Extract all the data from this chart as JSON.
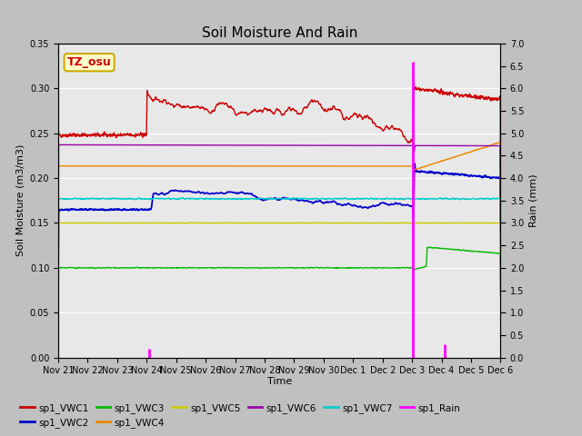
{
  "title": "Soil Moisture And Rain",
  "xlabel": "Time",
  "ylabel_left": "Soil Moisture (m3/m3)",
  "ylabel_right": "Rain (mm)",
  "site_label": "TZ_osu",
  "ylim_left": [
    0.0,
    0.35
  ],
  "ylim_right": [
    0.0,
    7.0
  ],
  "yticks_left": [
    0.0,
    0.05,
    0.1,
    0.15,
    0.2,
    0.25,
    0.3,
    0.35
  ],
  "yticks_right": [
    0.0,
    0.5,
    1.0,
    1.5,
    2.0,
    2.5,
    3.0,
    3.5,
    4.0,
    4.5,
    5.0,
    5.5,
    6.0,
    6.5,
    7.0
  ],
  "background_color": "#e8e8e8",
  "figure_bg": "#c8c8c8",
  "series": {
    "VWC1": {
      "color": "#cc0000",
      "label": "sp1_VWC1"
    },
    "VWC2": {
      "color": "#0000cc",
      "label": "sp1_VWC2"
    },
    "VWC3": {
      "color": "#00bb00",
      "label": "sp1_VWC3"
    },
    "VWC4": {
      "color": "#ee8800",
      "label": "sp1_VWC4"
    },
    "VWC5": {
      "color": "#cccc00",
      "label": "sp1_VWC5"
    },
    "VWC6": {
      "color": "#9900aa",
      "label": "sp1_VWC6"
    },
    "VWC7": {
      "color": "#00cccc",
      "label": "sp1_VWC7"
    },
    "Rain": {
      "color": "#ff00ff",
      "label": "sp1_Rain"
    }
  },
  "xtick_labels": [
    "Nov 21",
    "Nov 22",
    "Nov 23",
    "Nov 24",
    "Nov 25",
    "Nov 26",
    "Nov 27",
    "Nov 28",
    "Nov 29",
    "Nov 30",
    "Dec 1",
    "Dec 2",
    "Dec 3",
    "Dec 4",
    "Dec 5",
    "Dec 6"
  ],
  "xtick_positions": [
    0,
    1,
    2,
    3,
    4,
    5,
    6,
    7,
    8,
    9,
    10,
    11,
    12,
    13,
    14,
    15
  ]
}
